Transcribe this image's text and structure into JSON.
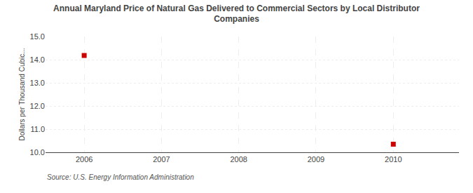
{
  "chart_data": {
    "type": "scatter",
    "title": "Annual Maryland Price of Natural Gas Delivered to Commercial Sectors by Local Distributor\nCompanies",
    "y_label": "Dollars per Thousand Cubic...",
    "annotations": [
      "Source: U.S. Energy Information Administration"
    ],
    "x": [
      2006,
      2010
    ],
    "values": [
      14.18,
      10.35
    ],
    "color": "#cc0000",
    "marker": "square",
    "xlim": [
      2005.5,
      2010.85
    ],
    "xticks": [
      2006,
      2007,
      2008,
      2009,
      2010
    ],
    "ylim": [
      10.0,
      15.0
    ],
    "yticks": [
      {
        "value": 10.0,
        "label": "10.0"
      },
      {
        "value": 11.0,
        "label": "11.0"
      },
      {
        "value": 12.0,
        "label": "12.0"
      },
      {
        "value": 13.0,
        "label": "13.0"
      },
      {
        "value": 14.0,
        "label": "14.0"
      },
      {
        "value": 15.0,
        "label": "15.0"
      }
    ],
    "grid": true
  }
}
